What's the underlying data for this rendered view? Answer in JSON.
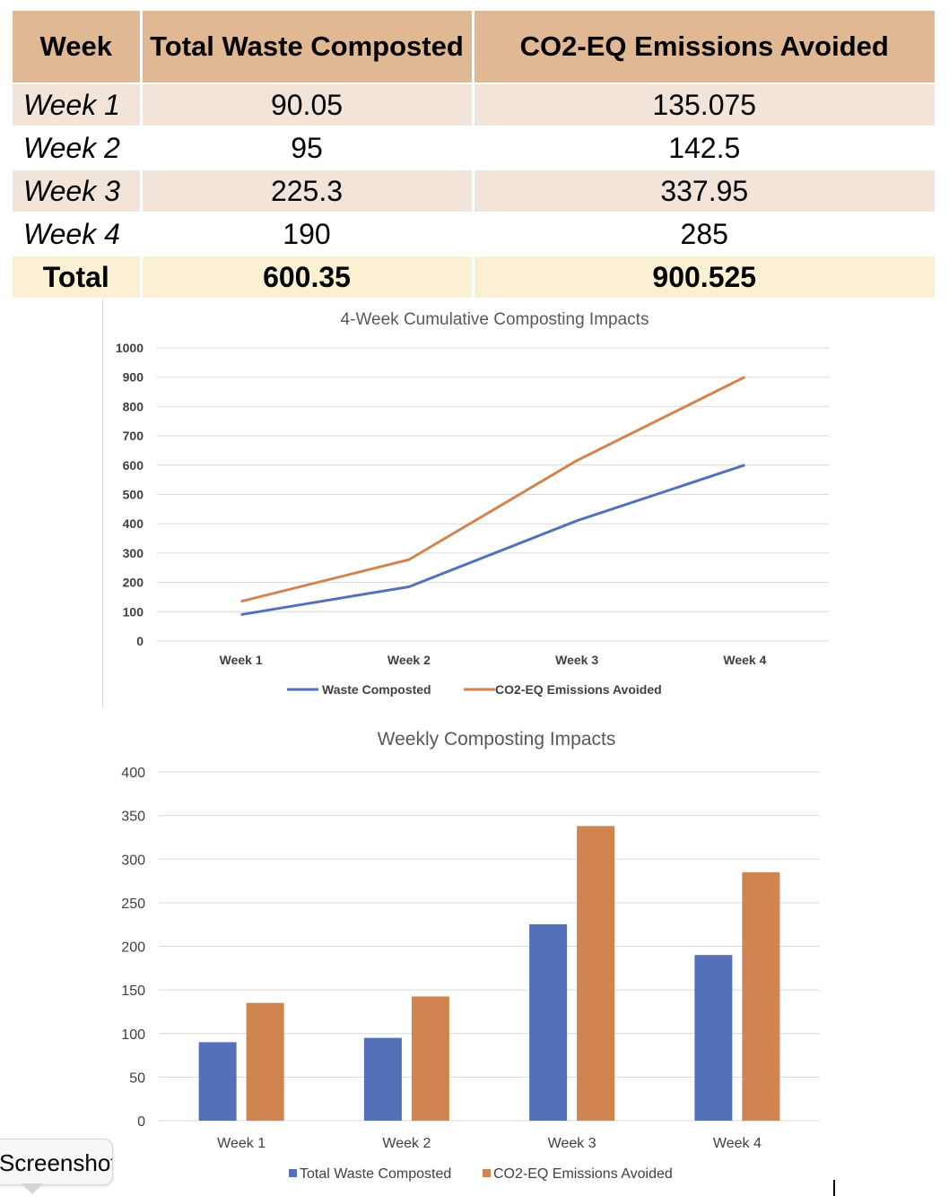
{
  "table": {
    "headers": [
      "Week",
      "Total Waste Composted",
      "CO2-EQ Emissions Avoided"
    ],
    "rows": [
      {
        "week": "Week 1",
        "waste": "90.05",
        "co2": "135.075"
      },
      {
        "week": "Week 2",
        "waste": "95",
        "co2": "142.5"
      },
      {
        "week": "Week 3",
        "waste": "225.3",
        "co2": "337.95"
      },
      {
        "week": "Week 4",
        "waste": "190",
        "co2": "285"
      }
    ],
    "total": {
      "label": "Total",
      "waste": "600.35",
      "co2": "900.525"
    }
  },
  "tooltip": {
    "text": "Screenshot"
  },
  "colors": {
    "blue": "#5470b8",
    "orange": "#d08550",
    "grid": "#d9d9d9",
    "axis_text": "#404040",
    "title_text": "#595959"
  },
  "chart_data": [
    {
      "type": "line",
      "title": "4-Week Cumulative Composting Impacts",
      "categories": [
        "Week 1",
        "Week 2",
        "Week 3",
        "Week 4"
      ],
      "ylim": [
        0,
        1000
      ],
      "yticks": [
        0,
        100,
        200,
        300,
        400,
        500,
        600,
        700,
        800,
        900,
        1000
      ],
      "series": [
        {
          "name": "Waste Composted",
          "values": [
            90.05,
            185.05,
            410.35,
            600.35
          ],
          "color": "#5470b8"
        },
        {
          "name": "CO2-EQ Emissions Avoided",
          "values": [
            135.075,
            277.575,
            615.525,
            900.525
          ],
          "color": "#d08550"
        }
      ],
      "legend": "bottom",
      "grid": true
    },
    {
      "type": "bar",
      "title": "Weekly Composting Impacts",
      "categories": [
        "Week 1",
        "Week 2",
        "Week 3",
        "Week 4"
      ],
      "ylim": [
        0,
        400
      ],
      "yticks": [
        0,
        50,
        100,
        150,
        200,
        250,
        300,
        350,
        400
      ],
      "series": [
        {
          "name": "Total Waste Composted",
          "values": [
            90.05,
            95,
            225.3,
            190
          ],
          "color": "#5470b8"
        },
        {
          "name": "CO2-EQ Emissions Avoided",
          "values": [
            135.075,
            142.5,
            337.95,
            285
          ],
          "color": "#d08550"
        }
      ],
      "legend": "bottom",
      "grid": true
    }
  ]
}
